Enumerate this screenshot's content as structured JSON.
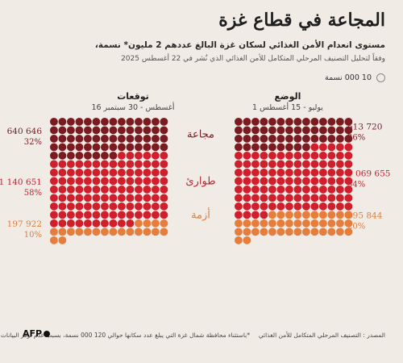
{
  "header": {
    "title": "المجاعة في قطاع غزة",
    "subtitle": "مستوى انعدام الأمن الغذائي لسكان غزة البالغ عددهم 2 مليون* نسمة،",
    "note": "وفقاً لتحليل التصنيف المرحلي المتكامل للأمن الغذائي الذي نُشر في 22 أغسطس 2025"
  },
  "legend": {
    "label": "10 000 نسمة",
    "icon": "circle-outline-icon"
  },
  "colors": {
    "famine": "#7a1b22",
    "emergency": "#cf1f2c",
    "crisis": "#e57e3c",
    "famine_text": "#7a1b22",
    "emergency_text": "#c42030",
    "crisis_text": "#e07b3a"
  },
  "columns": {
    "current": {
      "title": "الوضع",
      "period": "1 يوليو - 15 أغسطس"
    },
    "projected": {
      "title": "توقعات",
      "period": "16 أغسطس - 30 سبتمبر"
    }
  },
  "chart_data": {
    "type": "waffle",
    "unit_per_dot": 10000,
    "categories": [
      "مجاعة",
      "طوارئ",
      "أزمة"
    ],
    "series": [
      {
        "name": "الوضع",
        "values": [
          513720,
          1069655,
          395844
        ],
        "value_labels": [
          "513 720",
          "1 069 655",
          "395 844"
        ],
        "percent_labels": [
          "26%",
          "54%",
          "20%"
        ]
      },
      {
        "name": "توقعات",
        "values": [
          640646,
          1140651,
          197922
        ],
        "value_labels": [
          "640 646",
          "1 140 651",
          "197 922"
        ],
        "percent_labels": [
          "32%",
          "58%",
          "10%"
        ]
      }
    ]
  },
  "footer": {
    "source": "المصدر : التصنيف المرحلي المتكامل للأمن الغذائي",
    "footnote": "*باستثناء محافظة شمال غزة التي يبلغ عدد سكانها حوالي 120 000 نسمة، بسبب عدم توفر البيانات",
    "logo": "AFP"
  }
}
